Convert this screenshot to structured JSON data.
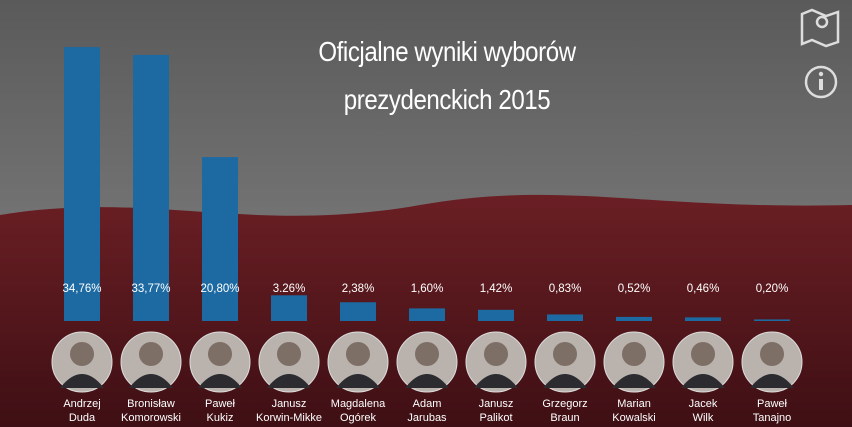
{
  "chart_data": {
    "type": "bar",
    "title": "Oficjalne wyniki wyborów\nprezydenckich 2015",
    "categories": [
      "Andrzej\nDuda",
      "Bronisław\nKomorowski",
      "Paweł\nKukiz",
      "Janusz\nKorwin-Mikke",
      "Magdalena\nOgórek",
      "Adam\nJarubas",
      "Janusz\nPalikot",
      "Grzegorz\nBraun",
      "Marian\nKowalski",
      "Jacek\nWilk",
      "Paweł\nTanajno"
    ],
    "values": [
      34.76,
      33.77,
      20.8,
      3.26,
      2.38,
      1.6,
      1.42,
      0.83,
      0.52,
      0.46,
      0.2
    ],
    "value_labels": [
      "34,76%",
      "33,77%",
      "20,80%",
      "3.26%",
      "2,38%",
      "1,60%",
      "1,42%",
      "0,83%",
      "0,52%",
      "0,46%",
      "0,20%"
    ],
    "color": "#1d6aa3"
  }
}
